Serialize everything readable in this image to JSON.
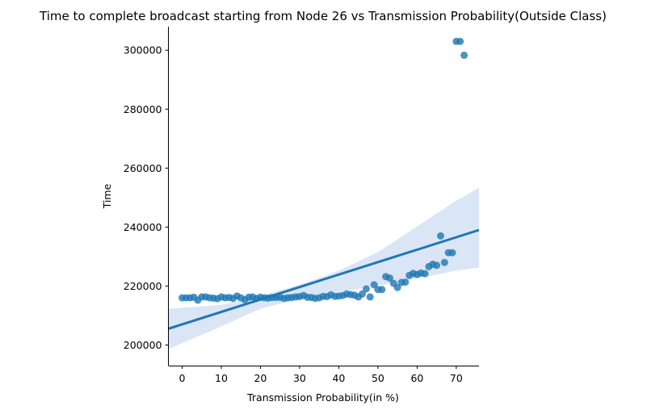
{
  "chart_data": {
    "type": "scatter",
    "title": "Time to complete broadcast starting from Node 26 vs Transmission Probability(Outside Class)",
    "xlabel": "Transmission Probability(in %)",
    "ylabel": "Time",
    "xlim": [
      -3.5,
      75.8
    ],
    "ylim": [
      193000,
      308000
    ],
    "xticks": [
      0,
      10,
      20,
      30,
      40,
      50,
      60,
      70
    ],
    "yticks": [
      200000,
      220000,
      240000,
      260000,
      280000,
      300000
    ],
    "grid": false,
    "colors": {
      "points": "#1f77b4",
      "line": "#1f77b4",
      "band": "#aec7e8"
    },
    "points": {
      "x": [
        0,
        1,
        2,
        3,
        4,
        5,
        6,
        7,
        8,
        9,
        10,
        11,
        12,
        13,
        14,
        15,
        16,
        17,
        18,
        19,
        20,
        21,
        22,
        23,
        24,
        25,
        26,
        27,
        28,
        29,
        30,
        31,
        32,
        33,
        34,
        35,
        36,
        37,
        38,
        39,
        40,
        41,
        42,
        43,
        44,
        45,
        46,
        47,
        48,
        49,
        50,
        51,
        52,
        53,
        54,
        55,
        56,
        57,
        58,
        59,
        60,
        61,
        62,
        63,
        64,
        65,
        66,
        67,
        68,
        69,
        70,
        71,
        72
      ],
      "y": [
        216000,
        216000,
        216000,
        216200,
        215200,
        216300,
        216300,
        216000,
        215900,
        215700,
        216300,
        216000,
        216100,
        215800,
        216600,
        216000,
        215400,
        216200,
        216300,
        215800,
        216200,
        216000,
        215900,
        216100,
        216100,
        216200,
        215800,
        216000,
        216100,
        216300,
        216400,
        216800,
        216200,
        216100,
        215800,
        216000,
        216500,
        216400,
        217000,
        216500,
        216600,
        216800,
        217300,
        217100,
        216900,
        216300,
        217300,
        219000,
        216300,
        220400,
        218800,
        218800,
        223200,
        222700,
        220900,
        219500,
        221200,
        221300,
        223600,
        224300,
        223900,
        224400,
        224200,
        226600,
        227400,
        227000,
        237000,
        228000,
        231300,
        231300,
        303000,
        303000,
        298300
      ]
    },
    "regression": {
      "x": [
        -3.5,
        75.8
      ],
      "y": [
        205500,
        239000
      ]
    },
    "confidence_band": {
      "x": [
        -3.5,
        10,
        20,
        30,
        40,
        50,
        60,
        70,
        75.8
      ],
      "lower": [
        198600,
        206300,
        212300,
        215700,
        217900,
        220200,
        222600,
        225200,
        226300
      ],
      "upper": [
        212300,
        213600,
        216700,
        220400,
        225200,
        231500,
        240200,
        249000,
        253300
      ]
    }
  }
}
